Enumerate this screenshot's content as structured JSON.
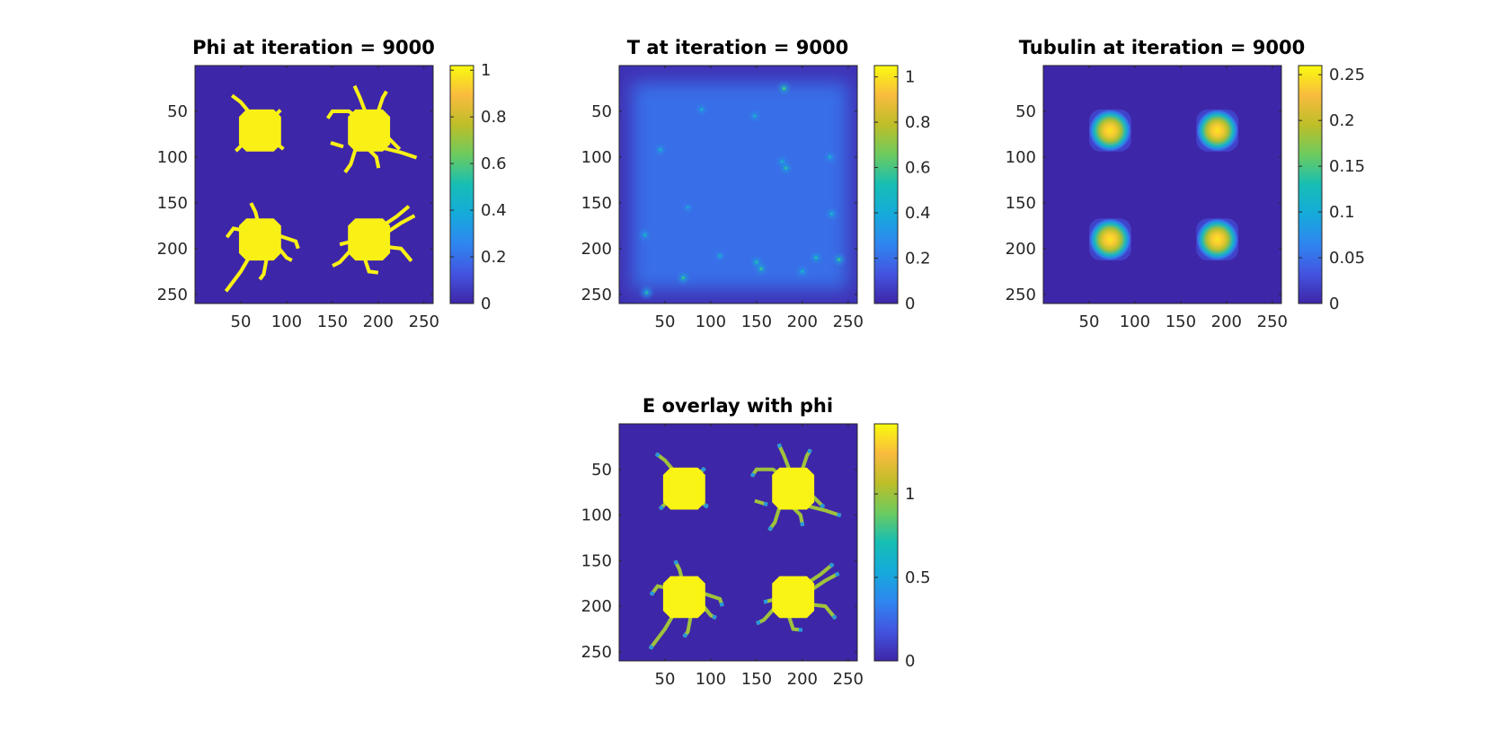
{
  "figure": {
    "background": "#ffffff"
  },
  "colormap": {
    "name": "parula",
    "stops": [
      "#3e26a8",
      "#4354e0",
      "#2f86f0",
      "#15aadb",
      "#16beb4",
      "#6ccb5f",
      "#bdbe28",
      "#f9bb3e",
      "#f9fb0e"
    ]
  },
  "chart_data": [
    {
      "id": "phi",
      "type": "heatmap",
      "title": "Phi at iteration = 9000",
      "xlabel": "",
      "ylabel": "",
      "grid_size": 260,
      "xticks": [
        "50",
        "100",
        "150",
        "200",
        "250"
      ],
      "xtick_values": [
        50,
        100,
        150,
        200,
        250
      ],
      "yticks": [
        "50",
        "100",
        "150",
        "200",
        "250"
      ],
      "ytick_values": [
        50,
        100,
        150,
        200,
        250
      ],
      "clim": [
        0,
        1.02
      ],
      "colorbar_ticks": [
        "0",
        "0.2",
        "0.4",
        "0.6",
        "0.8",
        "1"
      ],
      "colorbar_values": [
        0,
        0.2,
        0.4,
        0.6,
        0.8,
        1
      ],
      "background_value": 0,
      "cells": [
        {
          "cx": 71,
          "cy": 71,
          "half": 23,
          "value": 1
        },
        {
          "cx": 190,
          "cy": 71,
          "half": 23,
          "value": 1
        },
        {
          "cx": 71,
          "cy": 190,
          "half": 23,
          "value": 1
        },
        {
          "cx": 190,
          "cy": 190,
          "half": 23,
          "value": 1
        }
      ],
      "neurites": [
        {
          "value": 1,
          "points": [
            [
              60,
              52
            ],
            [
              50,
              40
            ],
            [
              42,
              34
            ]
          ]
        },
        {
          "value": 1,
          "points": [
            [
              86,
              56
            ],
            [
              92,
              50
            ]
          ]
        },
        {
          "value": 1,
          "points": [
            [
              52,
              86
            ],
            [
              46,
              92
            ]
          ]
        },
        {
          "value": 1,
          "points": [
            [
              90,
              86
            ],
            [
              95,
              90
            ]
          ]
        },
        {
          "value": 1,
          "points": [
            [
              176,
              56
            ],
            [
              168,
              50
            ],
            [
              150,
              50
            ],
            [
              146,
              56
            ]
          ]
        },
        {
          "value": 1,
          "points": [
            [
              185,
              48
            ],
            [
              180,
              35
            ],
            [
              175,
              24
            ]
          ]
        },
        {
          "value": 1,
          "points": [
            [
              200,
              50
            ],
            [
              205,
              35
            ],
            [
              208,
              30
            ]
          ]
        },
        {
          "value": 1,
          "points": [
            [
              205,
              90
            ],
            [
              225,
              95
            ],
            [
              240,
              100
            ]
          ]
        },
        {
          "value": 1,
          "points": [
            [
              190,
              92
            ],
            [
              198,
              100
            ],
            [
              200,
              110
            ]
          ]
        },
        {
          "value": 1,
          "points": [
            [
              175,
              92
            ],
            [
              170,
              108
            ],
            [
              165,
              115
            ]
          ]
        },
        {
          "value": 1,
          "points": [
            [
              212,
              80
            ],
            [
              222,
              90
            ]
          ]
        },
        {
          "value": 1,
          "points": [
            [
              150,
              85
            ],
            [
              160,
              88
            ]
          ]
        },
        {
          "value": 1,
          "points": [
            [
              68,
              168
            ],
            [
              66,
              160
            ],
            [
              62,
              152
            ]
          ]
        },
        {
          "value": 1,
          "points": [
            [
              52,
              180
            ],
            [
              42,
              178
            ],
            [
              36,
              186
            ]
          ]
        },
        {
          "value": 1,
          "points": [
            [
              60,
              208
            ],
            [
              50,
              225
            ],
            [
              35,
              245
            ]
          ]
        },
        {
          "value": 1,
          "points": [
            [
              78,
              212
            ],
            [
              75,
              228
            ],
            [
              72,
              232
            ]
          ]
        },
        {
          "value": 1,
          "points": [
            [
              92,
              200
            ],
            [
              100,
              210
            ],
            [
              104,
              212
            ]
          ]
        },
        {
          "value": 1,
          "points": [
            [
              92,
              186
            ],
            [
              110,
              192
            ],
            [
              112,
              198
            ]
          ]
        },
        {
          "value": 1,
          "points": [
            [
              205,
              175
            ],
            [
              220,
              165
            ],
            [
              232,
              155
            ]
          ]
        },
        {
          "value": 1,
          "points": [
            [
              210,
              182
            ],
            [
              225,
              172
            ],
            [
              238,
              165
            ]
          ]
        },
        {
          "value": 1,
          "points": [
            [
              208,
              198
            ],
            [
              225,
              200
            ],
            [
              235,
              212
            ]
          ]
        },
        {
          "value": 1,
          "points": [
            [
              168,
              204
            ],
            [
              158,
              215
            ],
            [
              152,
              218
            ]
          ]
        },
        {
          "value": 1,
          "points": [
            [
              185,
              210
            ],
            [
              190,
              225
            ],
            [
              198,
              226
            ]
          ]
        },
        {
          "value": 1,
          "points": [
            [
              172,
              192
            ],
            [
              160,
              195
            ]
          ]
        }
      ]
    },
    {
      "id": "T",
      "type": "heatmap",
      "title": "T at iteration = 9000",
      "xlabel": "",
      "ylabel": "",
      "grid_size": 260,
      "xticks": [
        "50",
        "100",
        "150",
        "200",
        "250"
      ],
      "xtick_values": [
        50,
        100,
        150,
        200,
        250
      ],
      "yticks": [
        "50",
        "100",
        "150",
        "200",
        "250"
      ],
      "ytick_values": [
        50,
        100,
        150,
        200,
        250
      ],
      "clim": [
        0,
        1.05
      ],
      "colorbar_ticks": [
        "0",
        "0.2",
        "0.4",
        "0.6",
        "0.8",
        "1"
      ],
      "colorbar_values": [
        0,
        0.2,
        0.4,
        0.6,
        0.8,
        1
      ],
      "background_value": 0.03,
      "diffuse_region": {
        "x0": 14,
        "y0": 18,
        "x1": 250,
        "y1": 245,
        "value": 0.2
      },
      "spots": [
        {
          "x": 28,
          "y": 185,
          "value": 0.35
        },
        {
          "x": 30,
          "y": 248,
          "value": 0.4
        },
        {
          "x": 45,
          "y": 92,
          "value": 0.33
        },
        {
          "x": 90,
          "y": 48,
          "value": 0.32
        },
        {
          "x": 70,
          "y": 232,
          "value": 0.45
        },
        {
          "x": 75,
          "y": 155,
          "value": 0.28
        },
        {
          "x": 110,
          "y": 208,
          "value": 0.32
        },
        {
          "x": 148,
          "y": 55,
          "value": 0.33
        },
        {
          "x": 150,
          "y": 215,
          "value": 0.4
        },
        {
          "x": 155,
          "y": 222,
          "value": 0.45
        },
        {
          "x": 178,
          "y": 105,
          "value": 0.35
        },
        {
          "x": 182,
          "y": 112,
          "value": 0.42
        },
        {
          "x": 180,
          "y": 25,
          "value": 0.5
        },
        {
          "x": 200,
          "y": 225,
          "value": 0.35
        },
        {
          "x": 215,
          "y": 210,
          "value": 0.4
        },
        {
          "x": 230,
          "y": 100,
          "value": 0.33
        },
        {
          "x": 232,
          "y": 162,
          "value": 0.35
        },
        {
          "x": 240,
          "y": 212,
          "value": 0.45
        }
      ]
    },
    {
      "id": "tubulin",
      "type": "heatmap",
      "title": "Tubulin at iteration = 9000",
      "xlabel": "",
      "ylabel": "",
      "grid_size": 260,
      "xticks": [
        "50",
        "100",
        "150",
        "200",
        "250"
      ],
      "xtick_values": [
        50,
        100,
        150,
        200,
        250
      ],
      "yticks": [
        "50",
        "100",
        "150",
        "200",
        "250"
      ],
      "ytick_values": [
        50,
        100,
        150,
        200,
        250
      ],
      "clim": [
        0,
        0.26
      ],
      "colorbar_ticks": [
        "0",
        "0.05",
        "0.1",
        "0.15",
        "0.2",
        "0.25"
      ],
      "colorbar_values": [
        0,
        0.05,
        0.1,
        0.15,
        0.2,
        0.25
      ],
      "background_value": 0,
      "blobs": [
        {
          "x": 73,
          "y": 71,
          "radius": 23,
          "peak": 0.25
        },
        {
          "x": 190,
          "y": 71,
          "radius": 23,
          "peak": 0.25
        },
        {
          "x": 73,
          "y": 190,
          "radius": 23,
          "peak": 0.25
        },
        {
          "x": 190,
          "y": 190,
          "radius": 23,
          "peak": 0.25
        }
      ]
    },
    {
      "id": "E",
      "type": "heatmap",
      "title": "E overlay with phi",
      "xlabel": "",
      "ylabel": "",
      "grid_size": 260,
      "xticks": [
        "50",
        "100",
        "150",
        "200",
        "250"
      ],
      "xtick_values": [
        50,
        100,
        150,
        200,
        250
      ],
      "yticks": [
        "50",
        "100",
        "150",
        "200",
        "250"
      ],
      "ytick_values": [
        50,
        100,
        150,
        200,
        250
      ],
      "clim": [
        0,
        1.42
      ],
      "colorbar_ticks": [
        "0",
        "0.5",
        "1"
      ],
      "colorbar_values": [
        0,
        0.5,
        1
      ],
      "background_value": 0,
      "cell_value": 1.4,
      "neurite_value": 1.0,
      "tip_value": 0.45
    }
  ]
}
